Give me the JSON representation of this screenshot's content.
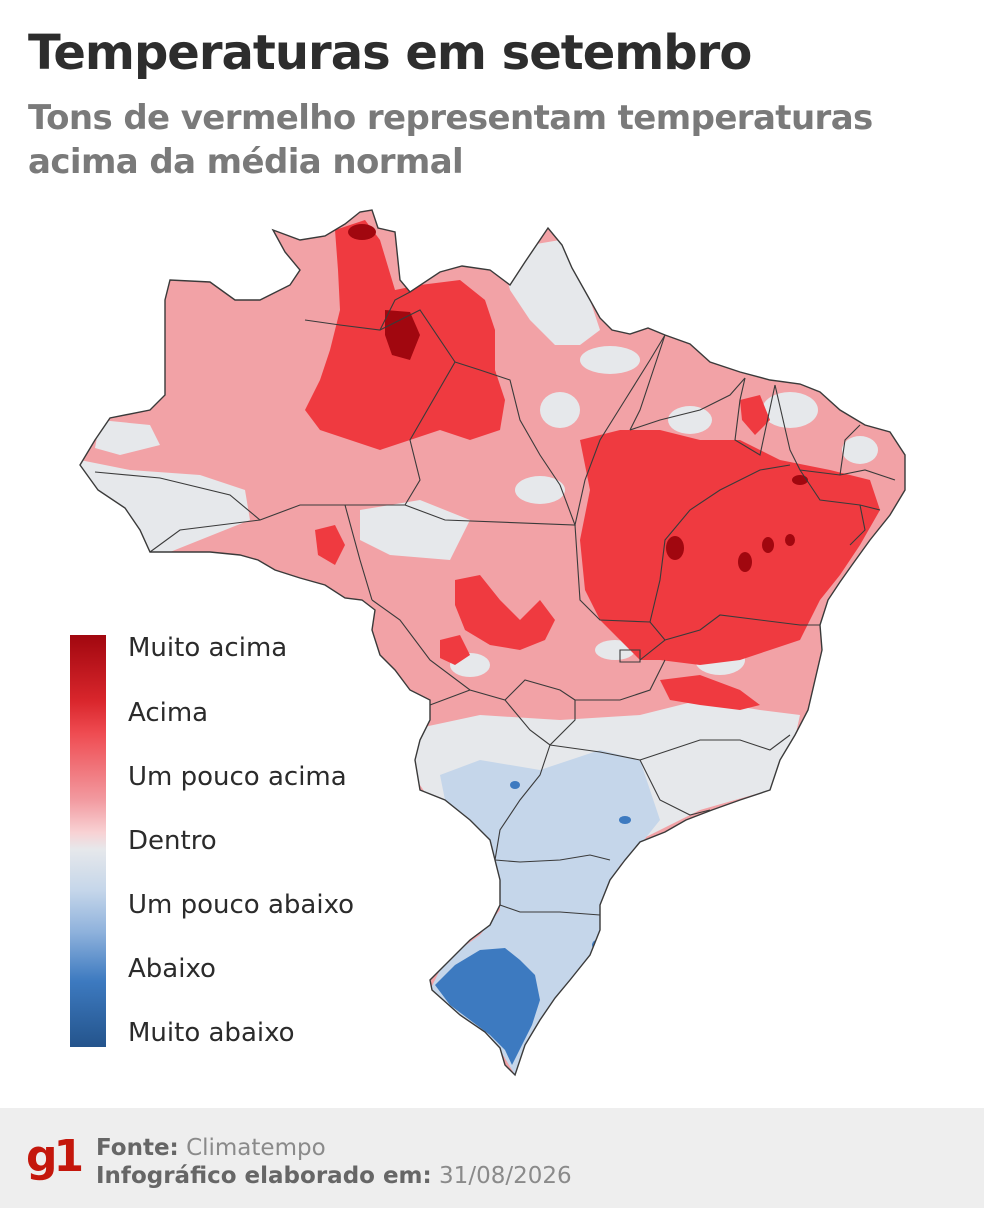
{
  "header": {
    "title": "Temperaturas em setembro",
    "subtitle_line1": "Tons de vermelho representam temperaturas",
    "subtitle_line2": "acima da média normal"
  },
  "legend": {
    "items": [
      {
        "label": "Muito acima",
        "color": "#a1070f"
      },
      {
        "label": "Acima",
        "color": "#ef3a40"
      },
      {
        "label": "Um pouco acima",
        "color": "#f2a2a6"
      },
      {
        "label": "Dentro",
        "color": "#e6e8eb"
      },
      {
        "label": "Um pouco abaixo",
        "color": "#c5d6ea"
      },
      {
        "label": "Abaixo",
        "color": "#3d7ac0"
      },
      {
        "label": "Muito abaixo",
        "color": "#24548c"
      }
    ]
  },
  "map": {
    "country": "Brazil",
    "palette": {
      "muito_acima": "#a1070f",
      "acima": "#ef3a40",
      "um_pouco_acima": "#f2a2a6",
      "dentro": "#e6e8eb",
      "um_pouco_abaixo": "#c5d6ea",
      "abaixo": "#3d7ac0",
      "border": "#3a3a3a"
    }
  },
  "footer": {
    "source_label": "Fonte:",
    "source_value": "Climatempo",
    "date_label": "Infográfico elaborado em:",
    "date_value": "31/08/2026",
    "logo_text": "g1",
    "logo_color": "#c4170c"
  }
}
